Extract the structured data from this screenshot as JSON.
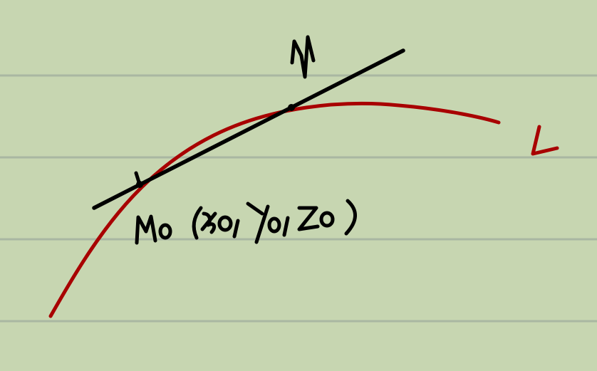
{
  "diagram": {
    "point_m_label": "M",
    "point_m0_label": "M0(x0, y0, z0)",
    "curve_label": "L",
    "colors": {
      "paper": "#c7d6b1",
      "rule_lines": "#a9b7a2",
      "curve": "#a80000",
      "ink": "#000000"
    }
  }
}
